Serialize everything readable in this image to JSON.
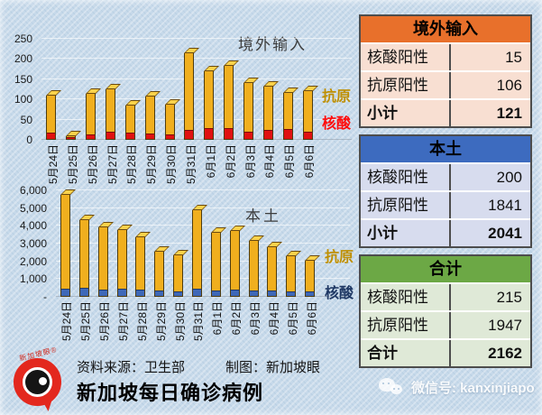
{
  "chart_data": [
    {
      "type": "bar",
      "stacked": true,
      "title": "境外输入",
      "categories": [
        "5月24日",
        "5月25日",
        "5月26日",
        "5月27日",
        "5月28日",
        "5月29日",
        "5月30日",
        "5月31日",
        "6月1日",
        "6月2日",
        "6月3日",
        "6月4日",
        "6月5日",
        "6月6日"
      ],
      "series": [
        {
          "key": "pcr",
          "name": "核酸",
          "color": "#e01111",
          "label_color": "#ff0b0b",
          "values": [
            13,
            2,
            9,
            15,
            13,
            11,
            10,
            20,
            25,
            24,
            15,
            20,
            22,
            15
          ]
        },
        {
          "key": "antigen",
          "name": "抗原",
          "color": "#f0af1e",
          "label_color": "#bf8f00",
          "values": [
            96,
            8,
            104,
            111,
            72,
            96,
            77,
            195,
            145,
            159,
            126,
            112,
            93,
            106
          ]
        }
      ],
      "ylim": [
        0,
        250
      ],
      "yticks": [
        {
          "value": 250,
          "label": "250"
        },
        {
          "value": 200,
          "label": "200"
        },
        {
          "value": 150,
          "label": "150"
        },
        {
          "value": 100,
          "label": "100"
        },
        {
          "value": 50,
          "label": "50"
        },
        {
          "value": 0,
          "label": "0"
        }
      ],
      "grid": true,
      "legend_position": "right"
    },
    {
      "type": "bar",
      "stacked": true,
      "title": "本土",
      "categories": [
        "5月24日",
        "5月25日",
        "5月26日",
        "5月27日",
        "5月28日",
        "5月29日",
        "5月30日",
        "5月31日",
        "6月1日",
        "6月2日",
        "6月3日",
        "6月4日",
        "6月5日",
        "6月6日"
      ],
      "series": [
        {
          "key": "pcr",
          "name": "核酸",
          "color": "#3e68b8",
          "label_color": "#1f3864",
          "values": [
            350,
            400,
            300,
            350,
            300,
            250,
            200,
            350,
            280,
            300,
            280,
            230,
            220,
            200
          ]
        },
        {
          "key": "antigen",
          "name": "抗原",
          "color": "#f0af1e",
          "label_color": "#bf8f00",
          "values": [
            5400,
            3900,
            3600,
            3430,
            3050,
            2270,
            2150,
            4550,
            3310,
            3400,
            2890,
            2570,
            2050,
            1841
          ]
        }
      ],
      "ylim": [
        0,
        6000
      ],
      "yticks": [
        {
          "value": 6000,
          "label": "6,000"
        },
        {
          "value": 5000,
          "label": "5,000"
        },
        {
          "value": 4000,
          "label": "4,000"
        },
        {
          "value": 3000,
          "label": "3,000"
        },
        {
          "value": 2000,
          "label": "2,000"
        },
        {
          "value": 1000,
          "label": "1,000"
        },
        {
          "value": 0,
          "label": "-"
        }
      ],
      "grid": true,
      "legend_position": "right"
    }
  ],
  "tables": [
    {
      "title": "境外输入",
      "header_color": "#e8702b",
      "row_color": "#f8dfd2",
      "rows": [
        {
          "label": "核酸阳性",
          "value": "15",
          "bold": false
        },
        {
          "label": "抗原阳性",
          "value": "106",
          "bold": false
        },
        {
          "label": "小计",
          "value": "121",
          "bold": true
        }
      ]
    },
    {
      "title": "本土",
      "header_color": "#3d6bbf",
      "row_color": "#d7dcee",
      "rows": [
        {
          "label": "核酸阳性",
          "value": "200",
          "bold": false
        },
        {
          "label": "抗原阳性",
          "value": "1841",
          "bold": false
        },
        {
          "label": "小计",
          "value": "2041",
          "bold": true
        }
      ]
    },
    {
      "title": "合计",
      "header_color": "#6ca845",
      "row_color": "#dfe9d7",
      "rows": [
        {
          "label": "核酸阳性",
          "value": "215",
          "bold": false
        },
        {
          "label": "抗原阳性",
          "value": "1947",
          "bold": false
        },
        {
          "label": "合计",
          "value": "2162",
          "bold": true
        }
      ]
    }
  ],
  "footer": {
    "source": "资料来源：卫生部",
    "credit": "制图：新加坡眼",
    "title": "新加坡每日确诊病例"
  },
  "logo_text": "新加坡眼®",
  "wechat": {
    "label": "微信号: kanxinjiapo"
  }
}
